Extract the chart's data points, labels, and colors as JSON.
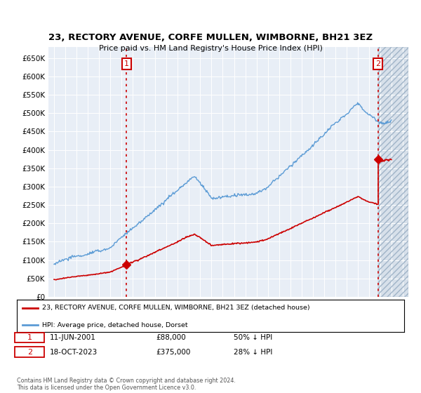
{
  "title": "23, RECTORY AVENUE, CORFE MULLEN, WIMBORNE, BH21 3EZ",
  "subtitle": "Price paid vs. HM Land Registry's House Price Index (HPI)",
  "ylabel_values": [
    "£0",
    "£50K",
    "£100K",
    "£150K",
    "£200K",
    "£250K",
    "£300K",
    "£350K",
    "£400K",
    "£450K",
    "£500K",
    "£550K",
    "£600K",
    "£650K"
  ],
  "ylim": [
    0,
    680000
  ],
  "yticks": [
    0,
    50000,
    100000,
    150000,
    200000,
    250000,
    300000,
    350000,
    400000,
    450000,
    500000,
    550000,
    600000,
    650000
  ],
  "xmin": 1994.5,
  "xmax": 2026.5,
  "hpi_line_color": "#5b9bd5",
  "price_color": "#cc0000",
  "marker1_date": 2001.44,
  "marker1_price": 88000,
  "marker2_date": 2023.79,
  "marker2_price": 375000,
  "legend_line1": "23, RECTORY AVENUE, CORFE MULLEN, WIMBORNE, BH21 3EZ (detached house)",
  "legend_line2": "HPI: Average price, detached house, Dorset",
  "footer1": "Contains HM Land Registry data © Crown copyright and database right 2024.",
  "footer2": "This data is licensed under the Open Government Licence v3.0.",
  "plot_bg": "#e8eef6",
  "grid_color": "#ffffff",
  "hatch_bg": "#d0dce8"
}
